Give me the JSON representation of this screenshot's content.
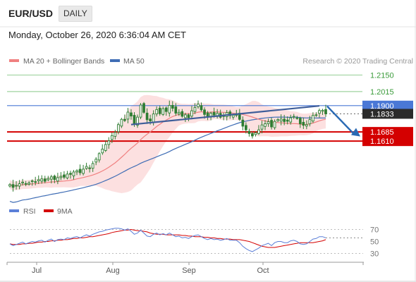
{
  "header": {
    "symbol": "EUR/USD",
    "timeframe": "DAILY",
    "datetime": "Monday, October 26, 2020 6:36:04 AM CET"
  },
  "legend": {
    "ma20": "MA 20 + Bollinger Bands",
    "ma50": "MA 50",
    "credit": "Research © 2020 Trading Central"
  },
  "rsi_legend": {
    "rsi": "RSI",
    "ma9": "9MA"
  },
  "colors": {
    "candle": "#2e7d32",
    "ma20": "#f08080",
    "bollinger_fill": "#fbdada",
    "ma50": "#3f6db5",
    "resistance": "#9fd39f",
    "blue_level": "#4a78d6",
    "support": "#d40000",
    "last_price": "#2b2b2b",
    "trend": "#3f5e9a",
    "arrow": "#2a6ab4"
  },
  "chart_data": [
    {
      "type": "candlestick",
      "x_tick_labels": [
        "Jul",
        "Aug",
        "Sep",
        "Oct"
      ],
      "ylim": [
        1.115,
        1.221
      ],
      "levels": [
        {
          "label": "1.2150",
          "value": 1.215,
          "kind": "resistance"
        },
        {
          "label": "1.2015",
          "value": 1.2015,
          "kind": "resistance"
        },
        {
          "label": "1.1900",
          "value": 1.19,
          "kind": "pivot"
        },
        {
          "label": "1.1833",
          "value": 1.1833,
          "kind": "last"
        },
        {
          "label": "1.1685",
          "value": 1.1685,
          "kind": "support"
        },
        {
          "label": "1.1610",
          "value": 1.161,
          "kind": "support"
        }
      ],
      "close": [
        1.1255,
        1.1232,
        1.1248,
        1.1262,
        1.1275,
        1.1258,
        1.1268,
        1.1285,
        1.1279,
        1.1295,
        1.1301,
        1.1282,
        1.1305,
        1.1318,
        1.1296,
        1.1312,
        1.1322,
        1.1315,
        1.1341,
        1.1338,
        1.1358,
        1.1368,
        1.1352,
        1.1381,
        1.1403,
        1.1388,
        1.1427,
        1.1462,
        1.1508,
        1.1545,
        1.1582,
        1.1612,
        1.1655,
        1.1681,
        1.1745,
        1.1788,
        1.1778,
        1.1847,
        1.1815,
        1.1752,
        1.1806,
        1.1905,
        1.1845,
        1.1785,
        1.1775,
        1.1832,
        1.1868,
        1.1834,
        1.1875,
        1.1852,
        1.1902,
        1.1878,
        1.1838,
        1.1845,
        1.1813,
        1.1825,
        1.1802,
        1.1858,
        1.1885,
        1.1912,
        1.1865,
        1.1828,
        1.1812,
        1.1838,
        1.1823,
        1.1837,
        1.1805,
        1.1815,
        1.1843,
        1.1818,
        1.1822,
        1.1826,
        1.1788,
        1.1732,
        1.1702,
        1.1672,
        1.1652,
        1.1678,
        1.1702,
        1.1742,
        1.1752,
        1.1768,
        1.1726,
        1.1771,
        1.1786,
        1.179,
        1.177,
        1.1772,
        1.18,
        1.1812,
        1.1797,
        1.1752,
        1.1739,
        1.1745,
        1.1786,
        1.182,
        1.1825,
        1.186,
        1.1862,
        1.1833
      ],
      "rsi": {
        "ylim": [
          20,
          80
        ],
        "ticks": [
          70,
          50,
          30
        ],
        "values": [
          46,
          43,
          45,
          47,
          49,
          46,
          48,
          50,
          49,
          51,
          52,
          49,
          52,
          54,
          50,
          53,
          54,
          53,
          56,
          55,
          57,
          58,
          56,
          59,
          61,
          59,
          62,
          64,
          66,
          67,
          69,
          70,
          71,
          72,
          72,
          71,
          69,
          71,
          67,
          62,
          64,
          69,
          64,
          59,
          58,
          62,
          64,
          61,
          63,
          61,
          64,
          61,
          58,
          59,
          56,
          57,
          55,
          58,
          60,
          61,
          58,
          55,
          53,
          55,
          53,
          54,
          52,
          53,
          55,
          52,
          52,
          52,
          48,
          42,
          38,
          35,
          33,
          36,
          39,
          43,
          45,
          47,
          43,
          48,
          50,
          50,
          48,
          48,
          51,
          52,
          50,
          46,
          45,
          46,
          50,
          54,
          55,
          58,
          58,
          56
        ],
        "ma9": [
          46,
          45,
          45,
          45,
          46,
          46,
          47,
          47,
          48,
          49,
          49,
          50,
          50,
          51,
          51,
          52,
          52,
          53,
          53,
          54,
          55,
          55,
          56,
          56,
          57,
          58,
          58,
          59,
          60,
          61,
          62,
          63,
          65,
          66,
          67,
          68,
          69,
          69,
          70,
          69,
          68,
          68,
          67,
          66,
          64,
          63,
          62,
          62,
          62,
          61,
          61,
          61,
          61,
          61,
          60,
          60,
          59,
          59,
          58,
          58,
          58,
          57,
          57,
          56,
          56,
          55,
          55,
          54,
          54,
          54,
          53,
          53,
          53,
          52,
          51,
          50,
          48,
          46,
          44,
          42,
          41,
          40,
          40,
          40,
          41,
          42,
          43,
          44,
          45,
          46,
          47,
          48,
          48,
          48,
          48,
          48,
          49,
          50,
          51,
          53
        ]
      }
    }
  ]
}
